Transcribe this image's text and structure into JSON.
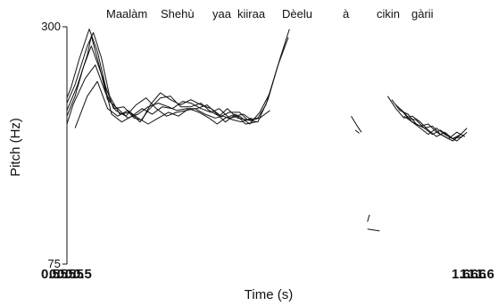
{
  "chart_data": {
    "type": "line",
    "title": "",
    "words": [
      "Maalàm",
      "Shehù",
      "yaa",
      "kiiraa",
      "Dèelu",
      "à",
      "cikin",
      "gàrii"
    ],
    "xlabel": "Time (s)",
    "ylabel": "Pitch (Hz)",
    "ytick_labels": [
      "75",
      "300"
    ],
    "ylim": [
      75,
      300
    ],
    "xlim": [
      0,
      1
    ],
    "x_tick_label_left": "0.5",
    "x_tick_label_right": "1.6",
    "log_scale_y": true,
    "grid": false,
    "legend": "none",
    "series": [
      {
        "points": [
          [
            0.0,
            198
          ],
          [
            0.01,
            210
          ],
          [
            0.03,
            248
          ],
          [
            0.055,
            296
          ],
          [
            0.075,
            260
          ],
          [
            0.095,
            212
          ],
          [
            0.115,
            186
          ],
          [
            0.14,
            188
          ],
          [
            0.165,
            176
          ],
          [
            0.185,
            174
          ],
          [
            0.205,
            190
          ],
          [
            0.23,
            204
          ],
          [
            0.255,
            196
          ],
          [
            0.28,
            190
          ],
          [
            0.305,
            196
          ],
          [
            0.33,
            190
          ],
          [
            0.355,
            186
          ],
          [
            0.38,
            178
          ],
          [
            0.4,
            182
          ],
          [
            0.425,
            182
          ],
          [
            0.445,
            174
          ],
          [
            0.47,
            176
          ],
          [
            0.49,
            190
          ],
          [
            0.52,
            240
          ],
          [
            0.545,
            282
          ]
        ]
      },
      {
        "points": [
          [
            0.0,
            192
          ],
          [
            0.02,
            214
          ],
          [
            0.05,
            268
          ],
          [
            0.065,
            290
          ],
          [
            0.085,
            250
          ],
          [
            0.105,
            200
          ],
          [
            0.13,
            180
          ],
          [
            0.155,
            182
          ],
          [
            0.18,
            172
          ],
          [
            0.2,
            184
          ],
          [
            0.23,
            198
          ],
          [
            0.255,
            200
          ],
          [
            0.28,
            188
          ],
          [
            0.305,
            188
          ],
          [
            0.33,
            192
          ],
          [
            0.35,
            184
          ],
          [
            0.375,
            178
          ],
          [
            0.395,
            186
          ],
          [
            0.42,
            176
          ],
          [
            0.445,
            174
          ],
          [
            0.47,
            172
          ],
          [
            0.495,
            196
          ],
          [
            0.525,
            250
          ],
          [
            0.548,
            296
          ]
        ]
      },
      {
        "points": [
          [
            0.0,
            184
          ],
          [
            0.025,
            212
          ],
          [
            0.05,
            254
          ],
          [
            0.06,
            284
          ],
          [
            0.08,
            238
          ],
          [
            0.1,
            196
          ],
          [
            0.125,
            186
          ],
          [
            0.15,
            176
          ],
          [
            0.175,
            180
          ],
          [
            0.2,
            188
          ],
          [
            0.225,
            192
          ],
          [
            0.25,
            188
          ],
          [
            0.27,
            184
          ],
          [
            0.295,
            186
          ],
          [
            0.32,
            186
          ],
          [
            0.345,
            190
          ],
          [
            0.37,
            180
          ],
          [
            0.39,
            172
          ],
          [
            0.41,
            178
          ],
          [
            0.435,
            180
          ],
          [
            0.455,
            174
          ],
          [
            0.475,
            176
          ],
          [
            0.5,
            184
          ]
        ]
      },
      {
        "points": [
          [
            0.0,
            178
          ],
          [
            0.02,
            200
          ],
          [
            0.04,
            236
          ],
          [
            0.06,
            268
          ],
          [
            0.09,
            220
          ],
          [
            0.11,
            180
          ],
          [
            0.135,
            172
          ],
          [
            0.16,
            178
          ],
          [
            0.185,
            186
          ],
          [
            0.21,
            180
          ],
          [
            0.235,
            188
          ],
          [
            0.26,
            186
          ],
          [
            0.285,
            194
          ],
          [
            0.305,
            192
          ],
          [
            0.33,
            186
          ],
          [
            0.355,
            182
          ],
          [
            0.375,
            186
          ],
          [
            0.4,
            176
          ],
          [
            0.425,
            178
          ],
          [
            0.45,
            170
          ],
          [
            0.475,
            182
          ],
          [
            0.5,
            204
          ]
        ]
      },
      {
        "points": [
          [
            0.0,
            170
          ],
          [
            0.015,
            190
          ],
          [
            0.045,
            222
          ],
          [
            0.07,
            240
          ],
          [
            0.095,
            204
          ],
          [
            0.12,
            184
          ],
          [
            0.145,
            178
          ],
          [
            0.17,
            190
          ],
          [
            0.195,
            198
          ],
          [
            0.22,
            186
          ],
          [
            0.245,
            178
          ],
          [
            0.27,
            182
          ],
          [
            0.295,
            184
          ],
          [
            0.315,
            186
          ],
          [
            0.34,
            180
          ],
          [
            0.365,
            176
          ],
          [
            0.385,
            178
          ],
          [
            0.41,
            174
          ],
          [
            0.43,
            172
          ],
          [
            0.455,
            176
          ]
        ]
      },
      {
        "points": [
          [
            0.02,
            166
          ],
          [
            0.05,
            200
          ],
          [
            0.075,
            218
          ],
          [
            0.1,
            186
          ],
          [
            0.125,
            178
          ],
          [
            0.15,
            184
          ],
          [
            0.175,
            176
          ],
          [
            0.2,
            170
          ],
          [
            0.225,
            176
          ],
          [
            0.25,
            182
          ],
          [
            0.275,
            178
          ],
          [
            0.3,
            186
          ],
          [
            0.325,
            182
          ],
          [
            0.35,
            176
          ],
          [
            0.37,
            170
          ],
          [
            0.39,
            176
          ],
          [
            0.415,
            180
          ],
          [
            0.44,
            170
          ],
          [
            0.465,
            172
          ]
        ]
      },
      {
        "points": [
          [
            0.7,
            178
          ],
          [
            0.715,
            168
          ],
          [
            0.725,
            162
          ]
        ]
      },
      {
        "points": [
          [
            0.71,
            164
          ],
          [
            0.72,
            161
          ]
        ]
      },
      {
        "points": [
          [
            0.79,
            200
          ],
          [
            0.81,
            186
          ],
          [
            0.83,
            176
          ],
          [
            0.85,
            178
          ],
          [
            0.87,
            172
          ],
          [
            0.89,
            164
          ],
          [
            0.91,
            158
          ],
          [
            0.93,
            162
          ],
          [
            0.95,
            156
          ],
          [
            0.97,
            160
          ],
          [
            0.985,
            166
          ]
        ]
      },
      {
        "points": [
          [
            0.8,
            196
          ],
          [
            0.82,
            184
          ],
          [
            0.84,
            180
          ],
          [
            0.86,
            170
          ],
          [
            0.88,
            166
          ],
          [
            0.9,
            168
          ],
          [
            0.92,
            160
          ],
          [
            0.94,
            156
          ],
          [
            0.96,
            162
          ],
          [
            0.98,
            158
          ]
        ]
      },
      {
        "points": [
          [
            0.81,
            190
          ],
          [
            0.83,
            182
          ],
          [
            0.85,
            172
          ],
          [
            0.87,
            168
          ],
          [
            0.89,
            170
          ],
          [
            0.91,
            162
          ],
          [
            0.93,
            158
          ],
          [
            0.95,
            154
          ],
          [
            0.97,
            160
          ]
        ]
      },
      {
        "points": [
          [
            0.82,
            186
          ],
          [
            0.84,
            176
          ],
          [
            0.86,
            174
          ],
          [
            0.88,
            166
          ],
          [
            0.9,
            160
          ],
          [
            0.92,
            164
          ],
          [
            0.94,
            158
          ],
          [
            0.96,
            154
          ],
          [
            0.985,
            162
          ]
        ]
      },
      {
        "points": [
          [
            0.83,
            178
          ],
          [
            0.85,
            172
          ],
          [
            0.87,
            166
          ],
          [
            0.89,
            160
          ],
          [
            0.91,
            166
          ],
          [
            0.93,
            160
          ],
          [
            0.95,
            156
          ],
          [
            0.975,
            158
          ]
        ]
      },
      {
        "points": [
          [
            0.74,
            96
          ],
          [
            0.745,
            100
          ]
        ]
      },
      {
        "points": [
          [
            0.74,
            92
          ],
          [
            0.77,
            91
          ]
        ]
      }
    ]
  }
}
